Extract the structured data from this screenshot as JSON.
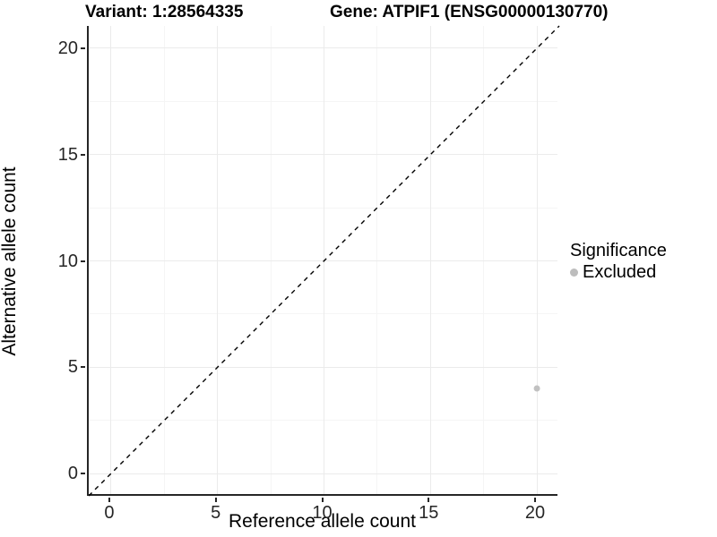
{
  "plot": {
    "title_variant": "Variant: 1:28564335",
    "title_gene": "Gene: ATPIF1 (ENSG00000130770)"
  },
  "axes": {
    "x_label": "Reference allele count",
    "y_label": "Alternative allele count"
  },
  "legend": {
    "title": "Significance",
    "entries": [
      {
        "label": "Excluded",
        "color": "#bdbdbd",
        "marker": "circle"
      }
    ]
  },
  "chart_data": {
    "type": "scatter",
    "title": "Variant: 1:28564335   Gene: ATPIF1 (ENSG00000130770)",
    "xlabel": "Reference allele count",
    "ylabel": "Alternative allele count",
    "xlim": [
      -1.05,
      21.05
    ],
    "ylim": [
      -1.05,
      21.05
    ],
    "x_ticks": [
      0,
      5,
      10,
      15,
      20
    ],
    "y_ticks": [
      0,
      5,
      10,
      15,
      20
    ],
    "x_minor_ticks": [
      2.5,
      7.5,
      12.5,
      17.5
    ],
    "y_minor_ticks": [
      2.5,
      7.5,
      12.5,
      17.5
    ],
    "grid": true,
    "legend_position": "right",
    "series": [
      {
        "name": "Excluded",
        "marker": "circle",
        "color": "#c1c1c1",
        "points": [
          {
            "x": 20,
            "y": 4
          }
        ]
      }
    ],
    "reference_line": {
      "type": "abline",
      "slope": 1,
      "intercept": 0,
      "style": "dashed",
      "color": "#000000"
    }
  },
  "colors": {
    "background": "#ffffff",
    "grid_major": "#ebebeb",
    "grid_minor": "#f5f5f5",
    "axis_line": "#262626",
    "tick_text": "#262626",
    "point_fill": "#c1c1c1",
    "legend_key_fill": "#bdbdbd"
  }
}
